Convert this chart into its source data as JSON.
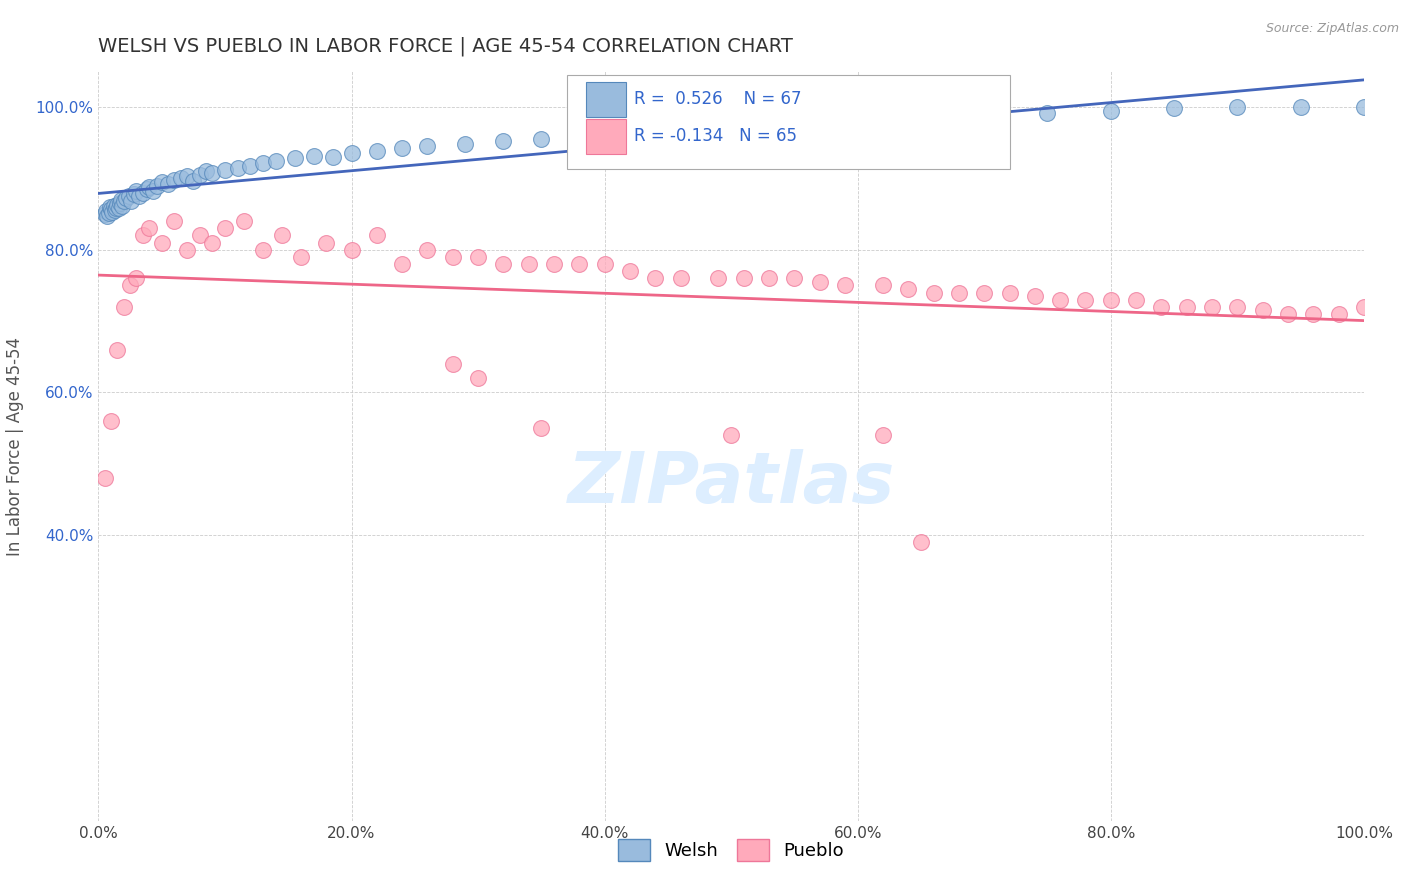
{
  "title": "WELSH VS PUEBLO IN LABOR FORCE | AGE 45-54 CORRELATION CHART",
  "source": "Source: ZipAtlas.com",
  "ylabel": "In Labor Force | Age 45-54",
  "welsh_R": 0.526,
  "welsh_N": 67,
  "pueblo_R": -0.134,
  "pueblo_N": 65,
  "welsh_fill": "#99BBDD",
  "welsh_edge": "#5588BB",
  "pueblo_fill": "#FFAABB",
  "pueblo_edge": "#EE7799",
  "blue_line": "#4466BB",
  "pink_line": "#EE6688",
  "legend_text_color": "#3366CC",
  "ytick_color": "#3366CC",
  "xtick_color": "#444444",
  "title_color": "#333333",
  "source_color": "#999999",
  "grid_color": "#CCCCCC",
  "background": "#FFFFFF",
  "xlim": [
    0.0,
    1.0
  ],
  "ylim": [
    0.0,
    1.05
  ],
  "yticks": [
    0.4,
    0.6,
    0.8,
    1.0
  ],
  "xticks": [
    0.0,
    0.2,
    0.4,
    0.6,
    0.8,
    1.0
  ],
  "welsh_x": [
    0.005,
    0.006,
    0.007,
    0.008,
    0.009,
    0.01,
    0.011,
    0.012,
    0.013,
    0.014,
    0.015,
    0.016,
    0.017,
    0.018,
    0.019,
    0.02,
    0.022,
    0.024,
    0.026,
    0.028,
    0.03,
    0.032,
    0.035,
    0.038,
    0.04,
    0.043,
    0.046,
    0.05,
    0.055,
    0.06,
    0.065,
    0.07,
    0.075,
    0.08,
    0.085,
    0.09,
    0.1,
    0.11,
    0.12,
    0.13,
    0.14,
    0.155,
    0.17,
    0.185,
    0.2,
    0.22,
    0.24,
    0.26,
    0.29,
    0.32,
    0.35,
    0.38,
    0.41,
    0.45,
    0.48,
    0.51,
    0.54,
    0.58,
    0.62,
    0.66,
    0.7,
    0.75,
    0.8,
    0.85,
    0.9,
    0.95,
    1.0
  ],
  "welsh_y": [
    0.85,
    0.855,
    0.848,
    0.852,
    0.86,
    0.857,
    0.853,
    0.861,
    0.856,
    0.859,
    0.863,
    0.858,
    0.865,
    0.87,
    0.862,
    0.868,
    0.872,
    0.875,
    0.869,
    0.878,
    0.882,
    0.876,
    0.88,
    0.885,
    0.888,
    0.883,
    0.89,
    0.895,
    0.892,
    0.898,
    0.9,
    0.903,
    0.897,
    0.905,
    0.91,
    0.908,
    0.912,
    0.915,
    0.918,
    0.922,
    0.925,
    0.928,
    0.932,
    0.93,
    0.935,
    0.938,
    0.942,
    0.945,
    0.948,
    0.952,
    0.955,
    0.958,
    0.962,
    0.965,
    0.968,
    0.972,
    0.975,
    0.978,
    0.982,
    0.985,
    0.988,
    0.992,
    0.995,
    0.998,
    1.0,
    1.0,
    1.0
  ],
  "pueblo_x": [
    0.005,
    0.01,
    0.015,
    0.02,
    0.025,
    0.03,
    0.035,
    0.04,
    0.05,
    0.06,
    0.07,
    0.08,
    0.09,
    0.1,
    0.115,
    0.13,
    0.145,
    0.16,
    0.18,
    0.2,
    0.22,
    0.24,
    0.26,
    0.28,
    0.3,
    0.32,
    0.34,
    0.36,
    0.38,
    0.4,
    0.42,
    0.44,
    0.46,
    0.49,
    0.51,
    0.53,
    0.55,
    0.57,
    0.59,
    0.62,
    0.64,
    0.66,
    0.68,
    0.7,
    0.72,
    0.74,
    0.76,
    0.78,
    0.8,
    0.82,
    0.84,
    0.86,
    0.88,
    0.9,
    0.92,
    0.94,
    0.96,
    0.98,
    1.0,
    0.28,
    0.3,
    0.35,
    0.5,
    0.62,
    0.65
  ],
  "pueblo_y": [
    0.48,
    0.56,
    0.66,
    0.72,
    0.75,
    0.76,
    0.82,
    0.83,
    0.81,
    0.84,
    0.8,
    0.82,
    0.81,
    0.83,
    0.84,
    0.8,
    0.82,
    0.79,
    0.81,
    0.8,
    0.82,
    0.78,
    0.8,
    0.79,
    0.79,
    0.78,
    0.78,
    0.78,
    0.78,
    0.78,
    0.77,
    0.76,
    0.76,
    0.76,
    0.76,
    0.76,
    0.76,
    0.755,
    0.75,
    0.75,
    0.745,
    0.74,
    0.74,
    0.74,
    0.74,
    0.735,
    0.73,
    0.73,
    0.73,
    0.73,
    0.72,
    0.72,
    0.72,
    0.72,
    0.715,
    0.71,
    0.71,
    0.71,
    0.72,
    0.64,
    0.62,
    0.55,
    0.54,
    0.54,
    0.39
  ],
  "watermark": "ZIPatlas",
  "watermark_color": "#DDEEFF"
}
